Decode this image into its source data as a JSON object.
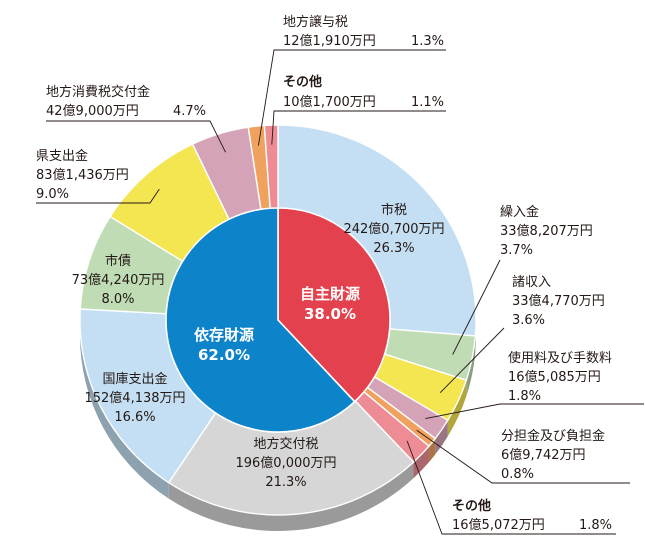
{
  "chart_data": {
    "type": "pie",
    "title": "",
    "inner": [
      {
        "name": "自主財源",
        "pct": "38.0%",
        "value": 38.0,
        "color": "#e3414e"
      },
      {
        "name": "依存財源",
        "pct": "62.0%",
        "value": 62.0,
        "color": "#0d83c9"
      }
    ],
    "outer": [
      {
        "name": "市税",
        "amount": "242億0,700万円",
        "pct": "26.3%",
        "value": 26.3,
        "group": "自主財源",
        "color": "#c4dff3"
      },
      {
        "name": "繰入金",
        "amount": "33億8,207万円",
        "pct": "3.7%",
        "value": 3.7,
        "group": "自主財源",
        "color": "#bfdcb4"
      },
      {
        "name": "諸収入",
        "amount": "33億4,770万円",
        "pct": "3.6%",
        "value": 3.6,
        "group": "自主財源",
        "color": "#f4e650"
      },
      {
        "name": "使用料及び手数料",
        "amount": "16億5,085万円",
        "pct": "1.8%",
        "value": 1.8,
        "group": "自主財源",
        "color": "#d5a3b7"
      },
      {
        "name": "分担金及び負担金",
        "amount": "6億9,742万円",
        "pct": "0.8%",
        "value": 0.8,
        "group": "自主財源",
        "color": "#f0a15d"
      },
      {
        "name": "その他",
        "amount": "16億5,072万円",
        "pct": "1.8%",
        "value": 1.8,
        "group": "自主財源",
        "color": "#ee8c95"
      },
      {
        "name": "地方交付税",
        "amount": "196億0,000万円",
        "pct": "21.3%",
        "value": 21.3,
        "group": "依存財源",
        "color": "#d6d6d6"
      },
      {
        "name": "国庫支出金",
        "amount": "152億4,138万円",
        "pct": "16.6%",
        "value": 16.6,
        "group": "依存財源",
        "color": "#c4dff3"
      },
      {
        "name": "市債",
        "amount": "73億4,240万円",
        "pct": "8.0%",
        "value": 8.0,
        "group": "依存財源",
        "color": "#bfdcb4"
      },
      {
        "name": "県支出金",
        "amount": "83億1,436万円",
        "pct": "9.0%",
        "value": 9.0,
        "group": "依存財源",
        "color": "#f4e650"
      },
      {
        "name": "地方消費税交付金",
        "amount": "42億9,000万円",
        "pct": "4.7%",
        "value": 4.7,
        "group": "依存財源",
        "color": "#d5a3b7"
      },
      {
        "name": "地方譲与税",
        "amount": "12億1,910万円",
        "pct": "1.3%",
        "value": 1.3,
        "group": "依存財源",
        "color": "#f0a15d"
      },
      {
        "name": "その他",
        "amount": "10億1,700万円",
        "pct": "1.1%",
        "value": 1.1,
        "group": "依存財源",
        "color": "#ee8c95"
      }
    ]
  }
}
